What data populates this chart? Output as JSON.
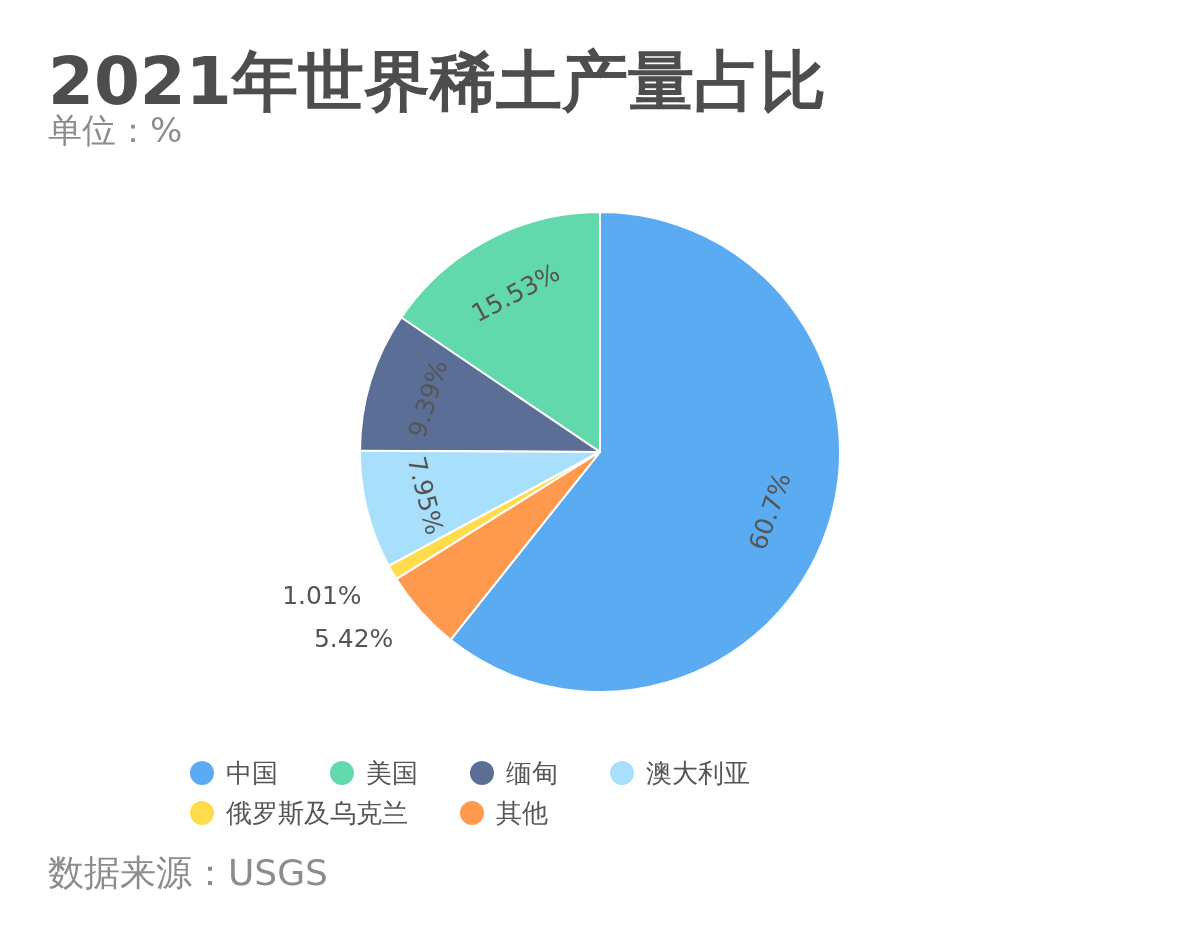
{
  "chart_data": {
    "type": "pie",
    "title": "2021年世界稀土产量占比",
    "subtitle": "单位：%",
    "categories": [
      "中国",
      "美国",
      "缅甸",
      "澳大利亚",
      "俄罗斯及乌克兰",
      "其他"
    ],
    "values": [
      60.7,
      15.53,
      9.39,
      7.95,
      1.01,
      5.42
    ],
    "colors": [
      "#5aabf2",
      "#62d9ad",
      "#5b6e96",
      "#a8dffa",
      "#ffdc4c",
      "#ff994d"
    ],
    "value_labels": [
      "60.7%",
      "15.53%",
      "9.39%",
      "7.95%",
      "1.01%",
      "5.42%"
    ],
    "legend": "bottom",
    "annotations": [
      "数据来源：USGS"
    ]
  }
}
